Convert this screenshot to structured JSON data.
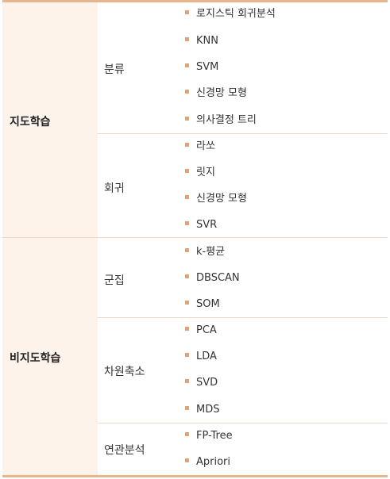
{
  "groups": [
    {
      "name": "지도학습",
      "subgroups": [
        {
          "name": "분류",
          "items": [
            "로지스틱 회귀분석",
            "KNN",
            "SVM",
            "신경망 모형",
            "의사결정 트리"
          ]
        },
        {
          "name": "회귀",
          "items": [
            "라쏘",
            "릿지",
            "신경망 모형",
            "SVR"
          ]
        }
      ]
    },
    {
      "name": "비지도학습",
      "subgroups": [
        {
          "name": "군집",
          "items": [
            "k-평균",
            "DBSCAN",
            "SOM"
          ]
        },
        {
          "name": "차원축소",
          "items": [
            "PCA",
            "LDA",
            "SVD",
            "MDS"
          ]
        },
        {
          "name": "연관분석",
          "items": [
            "FP-Tree",
            "Apriori"
          ]
        }
      ]
    }
  ],
  "colors": {
    "rule": "#e7b58e",
    "bullet": "#e8a06f",
    "first_col_bg": "#fdf3ea",
    "row_divider": "#f0d9c4"
  }
}
